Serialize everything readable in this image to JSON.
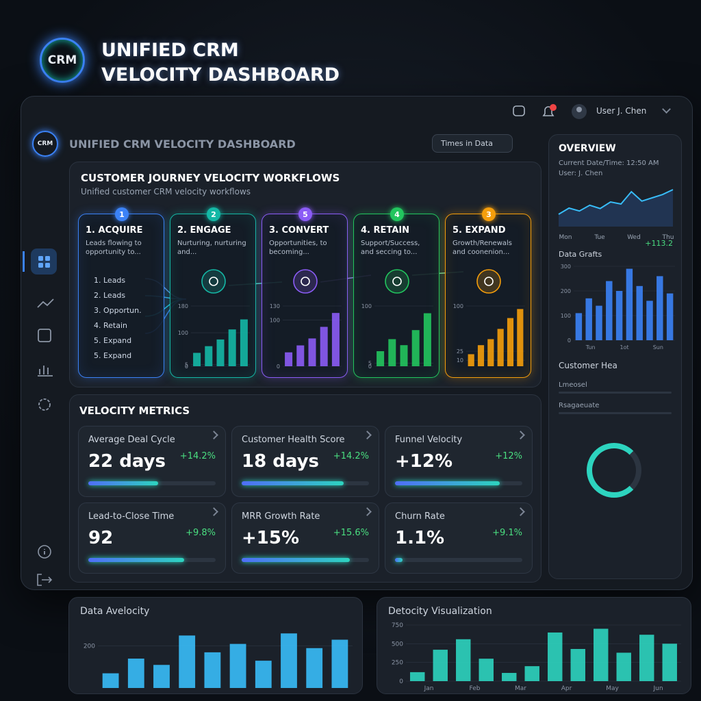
{
  "brand": {
    "logo": "CRM",
    "title_line1": "UNIFIED CRM",
    "title_line2": "VELOCITY DASHBOARD"
  },
  "topbar": {
    "user": "User J. Chen"
  },
  "dashboard": {
    "logo": "CRM",
    "title": "UNIFIED CRM VELOCITY DASHBOARD",
    "filter": "Times in Data"
  },
  "workflow": {
    "title": "CUSTOMER JOURNEY VELOCITY WORKFLOWS",
    "subtitle": "Unified customer CRM velocity workflows",
    "stages": [
      {
        "step": "1",
        "name": "1. ACQUIRE",
        "desc": "Leads flowing to opportunity to...",
        "color": "#3b82f6",
        "items": [
          "1. Leads",
          "2. Leads",
          "3. Opportun.",
          "4. Retain",
          "5. Expand",
          "5. Expand"
        ]
      },
      {
        "step": "2",
        "name": "2. ENGAGE",
        "desc": "Nurturing, nurturing and...",
        "color": "#14b8a6",
        "ylim": [
          0,
          180
        ],
        "yticks": [
          180,
          100,
          5,
          0
        ],
        "bars": [
          40,
          60,
          80,
          110,
          140
        ]
      },
      {
        "step": "5",
        "name": "3. CONVERT",
        "desc": "Opportunities, to becoming...",
        "color": "#8b5cf6",
        "ylim": [
          0,
          130
        ],
        "yticks": [
          130,
          100,
          0
        ],
        "bars": [
          30,
          45,
          60,
          85,
          115
        ]
      },
      {
        "step": "4",
        "name": "4. RETAIN",
        "desc": "Support/Success, and seccing to...",
        "color": "#22c55e",
        "ylim": [
          0,
          100
        ],
        "yticks": [
          100,
          5,
          0
        ],
        "bars": [
          25,
          45,
          35,
          60,
          88
        ]
      },
      {
        "step": "3",
        "name": "5. EXPAND",
        "desc": "Growth/Renewals and coonenion...",
        "color": "#f59e0b",
        "ylim": [
          0,
          100
        ],
        "yticks": [
          100,
          25,
          10
        ],
        "bars": [
          20,
          35,
          45,
          62,
          80,
          95
        ]
      }
    ]
  },
  "metrics": {
    "title": "VELOCITY METRICS",
    "cards": [
      {
        "label": "Average Deal Cycle",
        "value": "22 days",
        "change": "+14.2%",
        "progress": 55
      },
      {
        "label": "Lead-to-Close Time",
        "value": "92",
        "change": "+9.8%",
        "progress": 75
      },
      {
        "label": "Customer Health Score",
        "value": "18 days",
        "change": "+14.2%",
        "progress": 80
      },
      {
        "label": "MRR Growth Rate",
        "value": "+15%",
        "change": "+15.6%",
        "progress": 85
      },
      {
        "label": "Funnel Velocity",
        "value": "+12%",
        "change": "+12%",
        "progress": 82
      },
      {
        "label": "Churn Rate",
        "value": "1.1%",
        "change": "+9.1%",
        "progress": 6
      }
    ]
  },
  "overview": {
    "title": "OVERVIEW",
    "datetime": "Current Date/Time: 12:50 AM",
    "user": "User: J. Chen",
    "days": [
      "Mon",
      "Tue",
      "Wed",
      "Thu"
    ],
    "trend": [
      30,
      45,
      38,
      52,
      44,
      60,
      55,
      85,
      62,
      70,
      78,
      90
    ],
    "trend_ylim": [
      0,
      100
    ],
    "change": "+113.2",
    "bars_title": "Data Grafts",
    "bars_ylim": [
      0,
      300
    ],
    "bars_yticks": [
      300,
      200,
      100,
      0
    ],
    "bars": [
      110,
      170,
      140,
      240,
      200,
      290,
      220,
      160,
      260,
      190
    ],
    "bars_labels": [
      "Tun",
      "1ot",
      "Sun"
    ],
    "health_title": "Customer Hea",
    "health_items": [
      "Lmeosel",
      "Rsagaeuate"
    ]
  },
  "bottom": [
    {
      "title": "Data Avelocity",
      "ylim": [
        0,
        300
      ],
      "yticks": [
        200
      ],
      "bars": [
        70,
        140,
        110,
        250,
        170,
        210,
        130,
        260,
        190,
        230
      ]
    },
    {
      "title": "Detocity Visualization",
      "ylim": [
        0,
        750
      ],
      "yticks": [
        750,
        500,
        250,
        0
      ],
      "labels": [
        "Jan",
        "Feb",
        "Mar",
        "Apr",
        "May",
        "Jun"
      ],
      "bars": [
        120,
        420,
        560,
        300,
        110,
        200,
        650,
        430,
        700,
        380,
        620,
        500
      ]
    }
  ]
}
